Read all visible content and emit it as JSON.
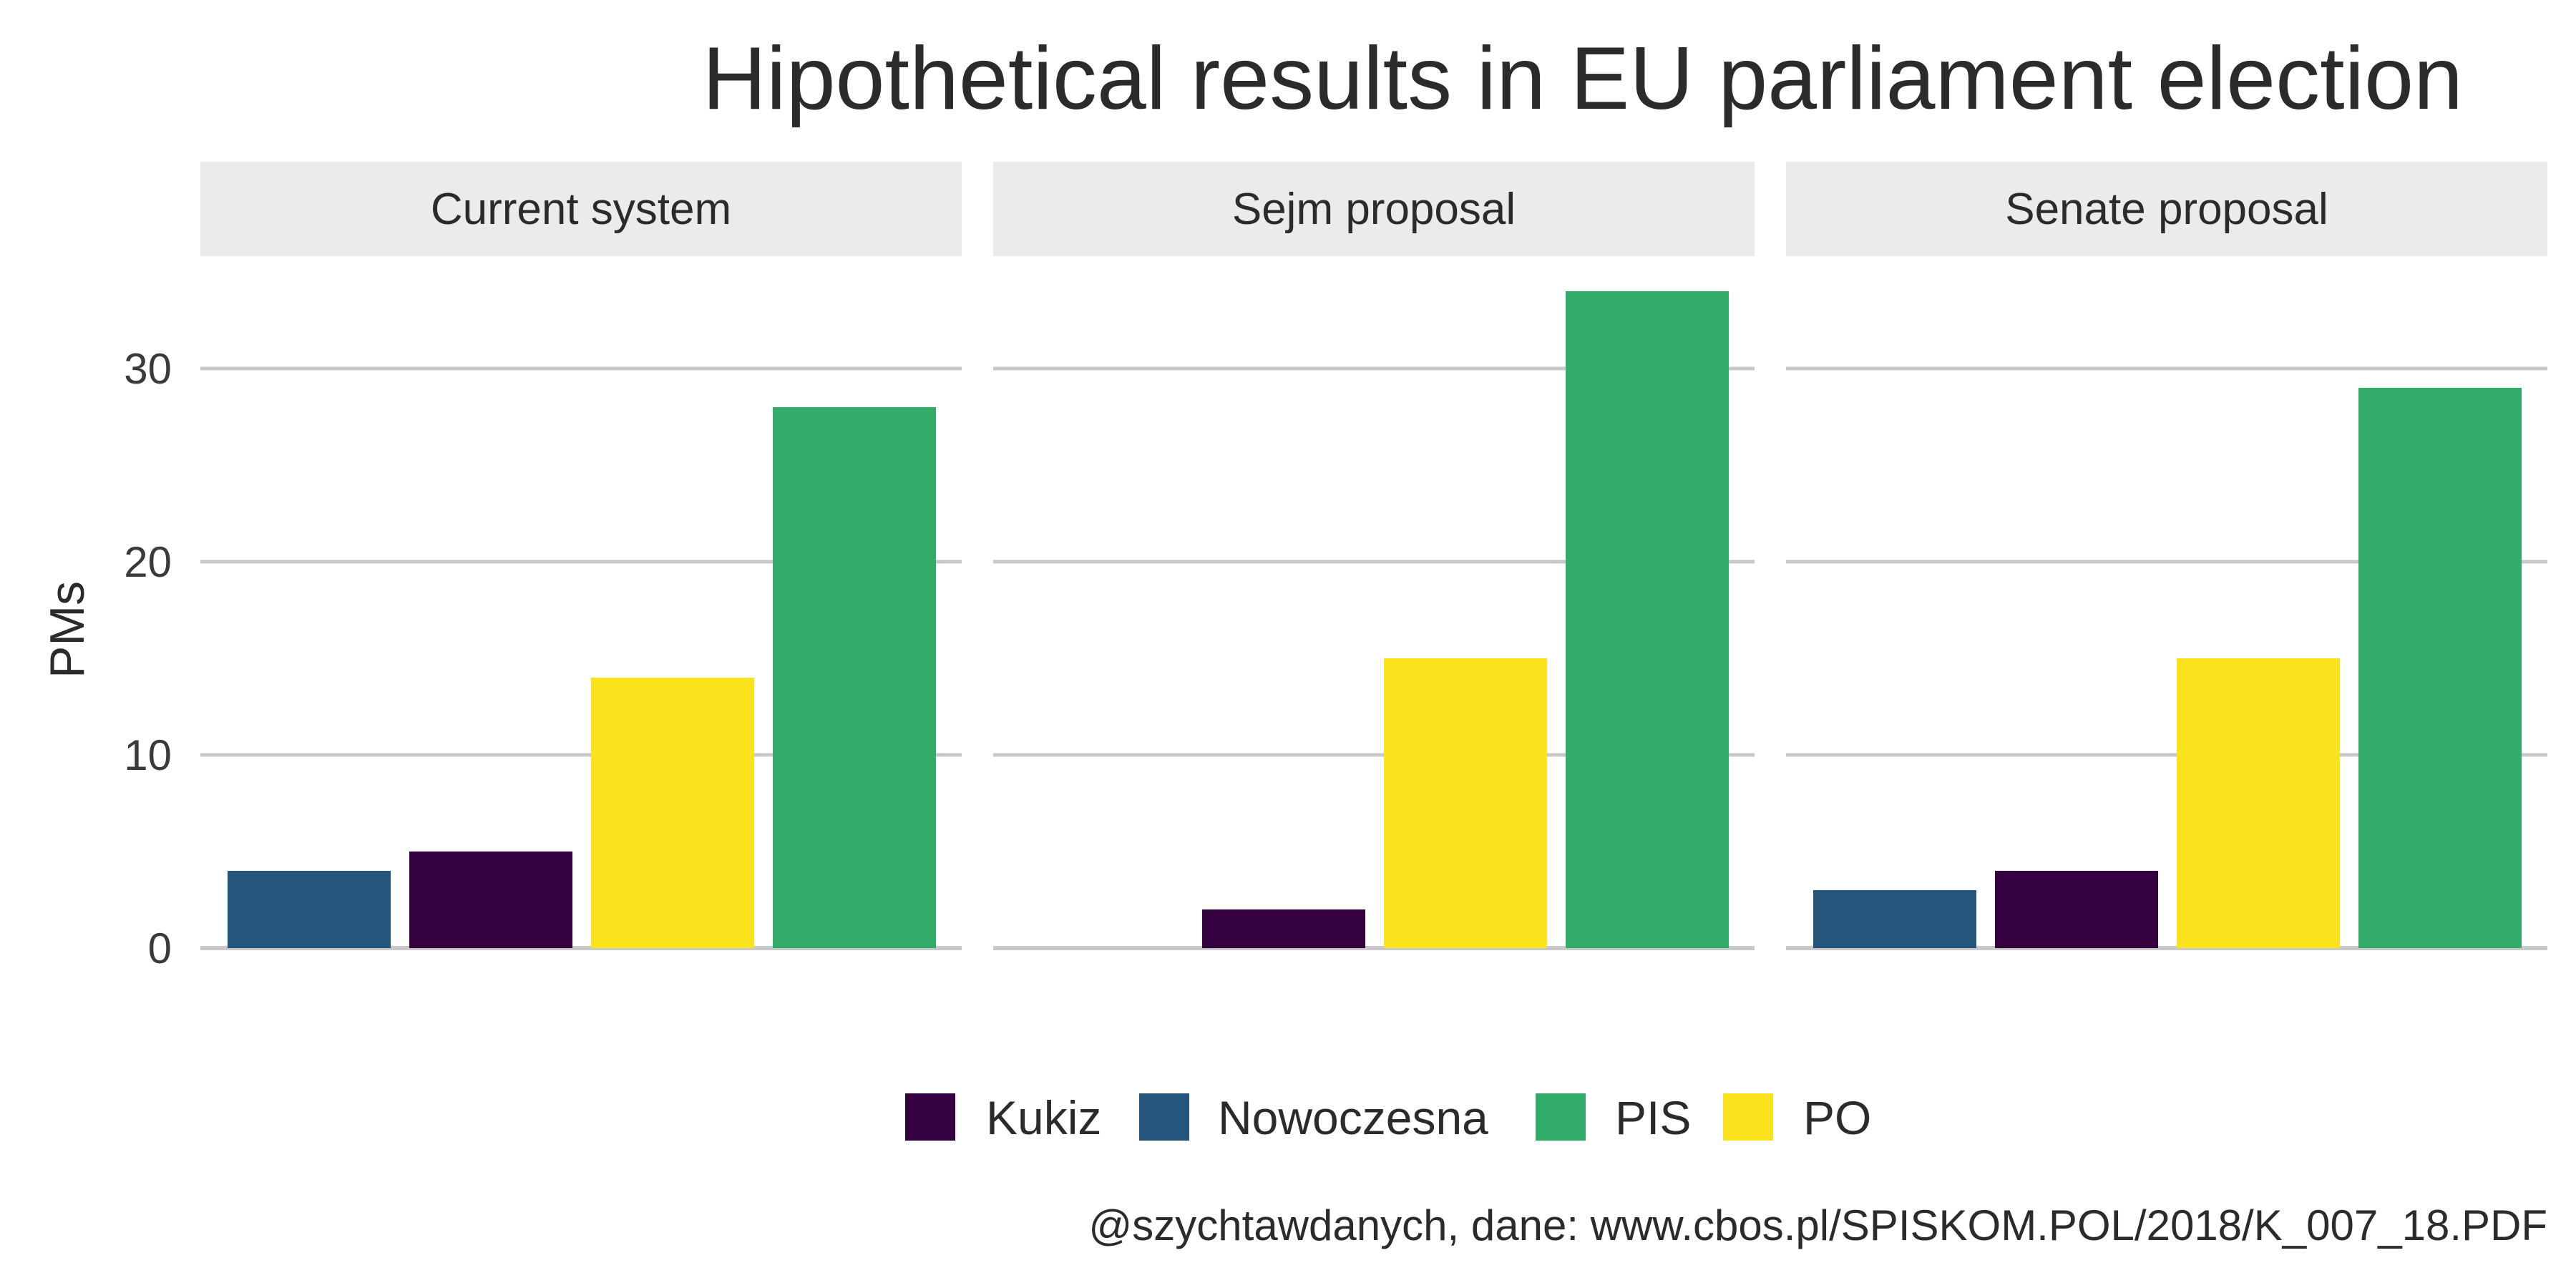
{
  "chart_data": {
    "type": "bar",
    "title": "Hipothetical results in EU parliament election",
    "ylabel": "PMs",
    "xlabel": "",
    "ylim": [
      0,
      34
    ],
    "yticks": [
      0,
      10,
      20,
      30
    ],
    "grid": true,
    "legend_position": "bottom",
    "caption": "@szychtawdanych, dane: www.cbos.pl/SPISKOM.POL/2018/K_007_18.PDF",
    "categories": [
      "Nowoczesna",
      "Kukiz",
      "PO",
      "PIS"
    ],
    "legend": [
      {
        "name": "Kukiz",
        "color": "#35003f"
      },
      {
        "name": "Nowoczesna",
        "color": "#25557a"
      },
      {
        "name": "PIS",
        "color": "#31ad69"
      },
      {
        "name": "PO",
        "color": "#fbe31e"
      }
    ],
    "panels": [
      {
        "name": "Current system",
        "values": [
          4,
          5,
          14,
          28
        ]
      },
      {
        "name": "Sejm proposal",
        "values": [
          0,
          2,
          15,
          34
        ]
      },
      {
        "name": "Senate proposal",
        "values": [
          3,
          4,
          15,
          29
        ]
      }
    ]
  }
}
